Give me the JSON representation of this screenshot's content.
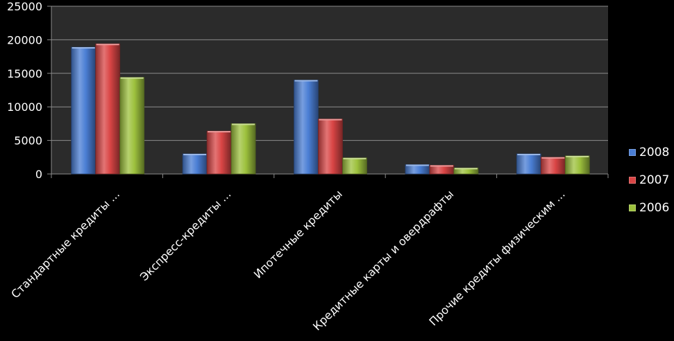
{
  "chart_data": {
    "type": "bar",
    "categories": [
      "Стандартные кредиты ...",
      "Экспресс-кредиты ...",
      "Ипотечные кредиты",
      "Кредитные карты и овердрафты",
      "Прочие кредиты физическим ..."
    ],
    "series": [
      {
        "name": "2008",
        "color": "#4a7ed4",
        "values": [
          18900,
          3000,
          14000,
          1400,
          3000
        ]
      },
      {
        "name": "2007",
        "color": "#d94545",
        "values": [
          19400,
          6400,
          8200,
          1300,
          2500
        ]
      },
      {
        "name": "2006",
        "color": "#9dc13d",
        "values": [
          14400,
          7500,
          2400,
          900,
          2700
        ]
      }
    ],
    "ylim": [
      0,
      25000
    ],
    "yticks": [
      "0",
      "5000",
      "10000",
      "15000",
      "20000",
      "25000"
    ],
    "grid": true,
    "legend": "right",
    "plot_background": "#2b2b2b"
  }
}
